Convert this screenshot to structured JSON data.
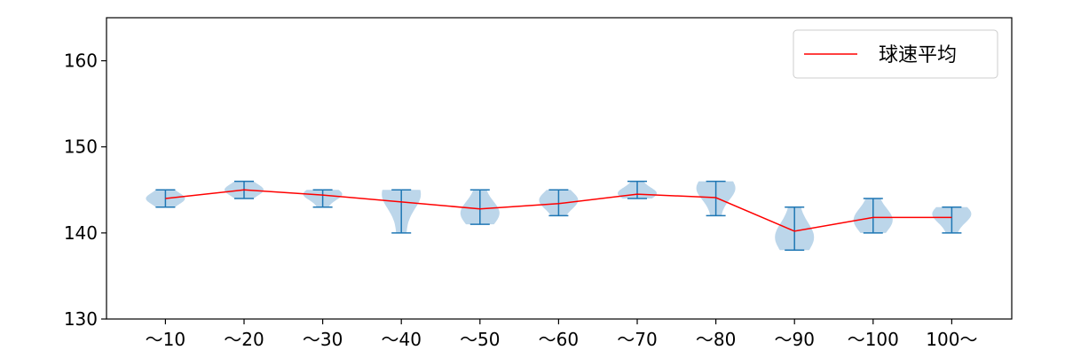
{
  "chart_data": {
    "type": "violin",
    "categories": [
      "～10",
      "～20",
      "～30",
      "～40",
      "～50",
      "～60",
      "～70",
      "～80",
      "～90",
      "～100",
      "100～"
    ],
    "series": [
      {
        "name": "球速平均",
        "kind": "line",
        "color": "#ff0000",
        "values": [
          144.0,
          145.0,
          144.4,
          143.6,
          142.8,
          143.4,
          144.5,
          144.1,
          140.2,
          141.8,
          141.8
        ]
      }
    ],
    "violins": {
      "color": "#1f77b4",
      "fill": "#a6c8e3",
      "min": [
        143,
        144,
        143,
        140,
        141,
        142,
        144,
        142,
        138,
        140,
        140
      ],
      "max": [
        145,
        146,
        145,
        145,
        145,
        145,
        146,
        146,
        143,
        144,
        143
      ],
      "mode": [
        144,
        145,
        144.5,
        144.5,
        142.3,
        143.8,
        144.6,
        145.2,
        139.5,
        141.5,
        142.2
      ]
    },
    "y_ticks": [
      130,
      140,
      150,
      160
    ],
    "ylim": [
      130,
      165
    ],
    "xlabel": "",
    "ylabel": "",
    "legend": {
      "position": "top-right",
      "label": "球速平均"
    },
    "grid": false
  }
}
